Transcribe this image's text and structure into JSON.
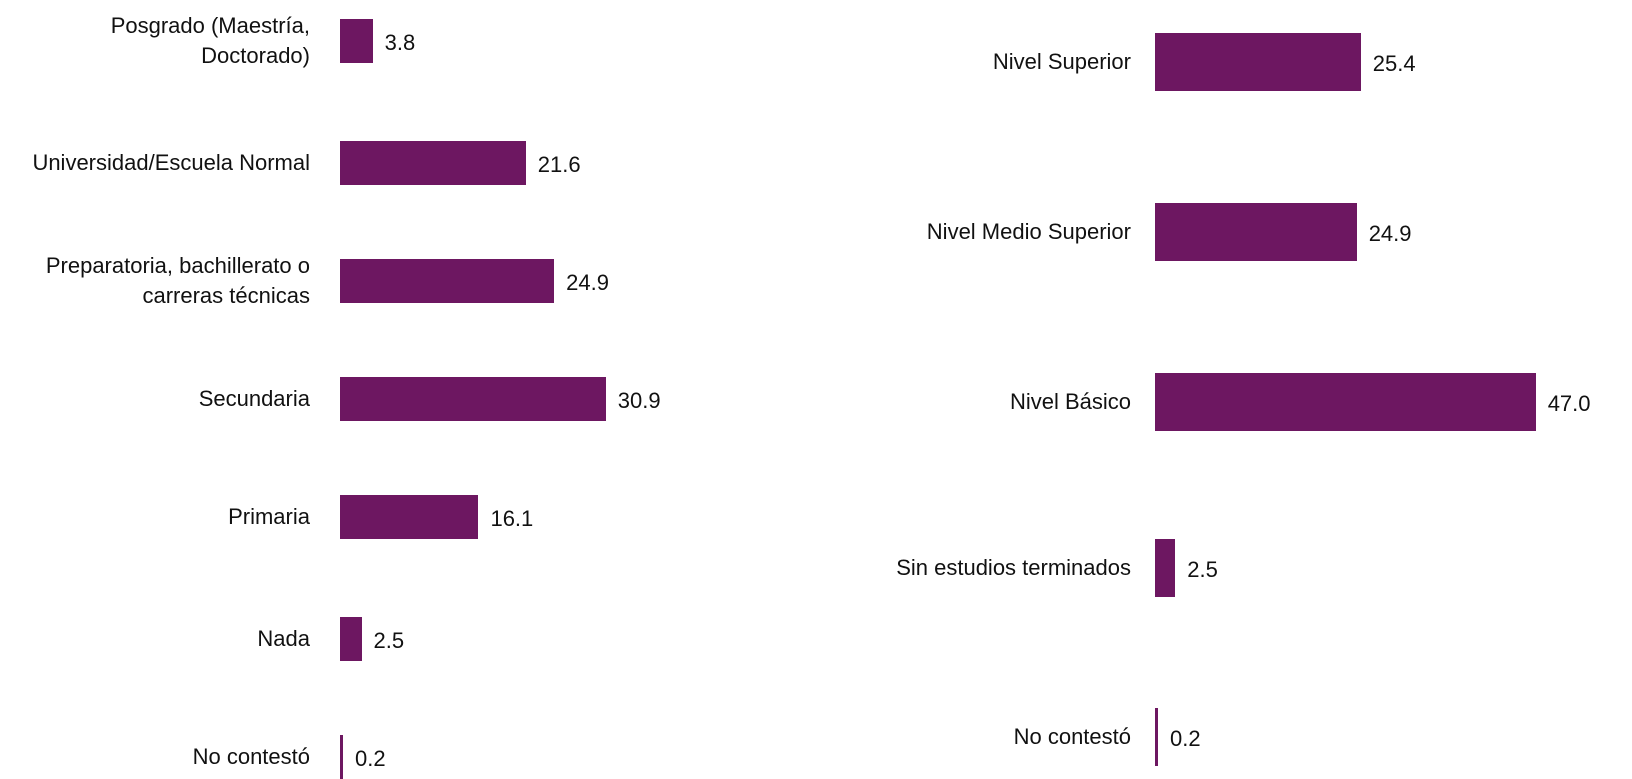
{
  "chart_data": [
    {
      "type": "barh",
      "categories": [
        "Posgrado (Maestría, Doctorado)",
        "Universidad/Escuela Normal",
        "Preparatoria, bachillerato o carreras técnicas",
        "Secundaria",
        "Primaria",
        "Nada",
        "No contestó"
      ],
      "values": [
        3.8,
        21.6,
        24.9,
        30.9,
        16.1,
        2.5,
        0.2
      ],
      "value_labels": [
        "3.8",
        "21.6",
        "24.9",
        "30.9",
        "16.1",
        "2.5",
        "0.2"
      ],
      "color": "#6d1761"
    },
    {
      "type": "barh",
      "categories": [
        "Nivel Superior",
        "Nivel Medio Superior",
        "Nivel Básico",
        "Sin estudios terminados",
        "No contestó"
      ],
      "values": [
        25.4,
        24.9,
        47.0,
        2.5,
        0.2
      ],
      "value_labels": [
        "25.4",
        "24.9",
        "47.0",
        "2.5",
        "0.2"
      ],
      "color": "#6d1761"
    }
  ]
}
